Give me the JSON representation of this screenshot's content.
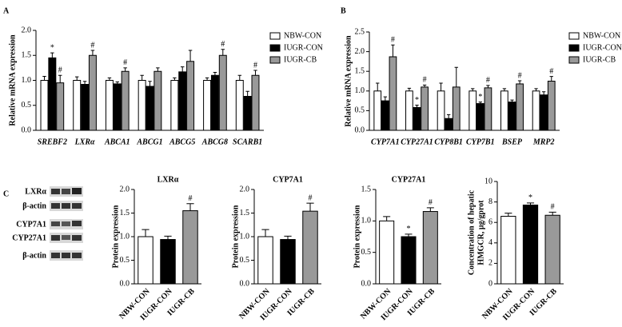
{
  "chart_data": [
    {
      "type": "bar",
      "panel": "A",
      "ylabel": "Relative mRNA expression",
      "categories": [
        "SREBF2",
        "LXRα",
        "ABCA1",
        "ABCG1",
        "ABCG5",
        "ABCG8",
        "SCARB1"
      ],
      "series": [
        {
          "name": "NBW-CON",
          "color": "#ffffff",
          "values": [
            1.0,
            1.0,
            1.0,
            1.0,
            1.0,
            1.0,
            1.0
          ],
          "errors": [
            0.08,
            0.07,
            0.05,
            0.1,
            0.05,
            0.05,
            0.1
          ],
          "annotations": [
            null,
            null,
            null,
            null,
            null,
            null,
            null
          ]
        },
        {
          "name": "IUGR-CON",
          "color": "#000000",
          "values": [
            1.45,
            0.92,
            0.93,
            0.88,
            1.17,
            1.1,
            0.68
          ],
          "errors": [
            0.1,
            0.06,
            0.04,
            0.1,
            0.1,
            0.06,
            0.1
          ],
          "annotations": [
            "*",
            null,
            null,
            null,
            null,
            null,
            null
          ]
        },
        {
          "name": "IUGR-CB",
          "color": "#999999",
          "values": [
            0.95,
            1.5,
            1.18,
            1.18,
            1.38,
            1.5,
            1.1
          ],
          "errors": [
            0.15,
            0.1,
            0.07,
            0.07,
            0.22,
            0.12,
            0.1
          ],
          "annotations": [
            "#",
            "#",
            "#",
            null,
            null,
            "#",
            "#"
          ]
        }
      ],
      "ylim": [
        0,
        2.0
      ],
      "yticks": [
        {
          "value": 0,
          "label": "0.0"
        },
        0.5,
        {
          "value": 1.0,
          "label": "1.0"
        },
        1.5,
        {
          "value": 2.0,
          "label": "2.0"
        }
      ]
    },
    {
      "type": "bar",
      "panel": "B",
      "ylabel": "Relative mRNA expression",
      "categories": [
        "CYP7A1",
        "CYP27A1",
        "CYP8B1",
        "CYP7B1",
        "BSEP",
        "MRP2"
      ],
      "series": [
        {
          "name": "NBW-CON",
          "color": "#ffffff",
          "values": [
            1.0,
            1.0,
            1.0,
            1.0,
            1.0,
            1.0
          ],
          "errors": [
            0.2,
            0.07,
            0.2,
            0.06,
            0.06,
            0.06
          ],
          "annotations": [
            null,
            null,
            null,
            null,
            null,
            null
          ]
        },
        {
          "name": "IUGR-CON",
          "color": "#000000",
          "values": [
            0.75,
            0.58,
            0.3,
            0.68,
            0.72,
            0.9
          ],
          "errors": [
            0.1,
            0.06,
            0.1,
            0.04,
            0.05,
            0.08
          ],
          "annotations": [
            null,
            "*",
            null,
            "*",
            null,
            null
          ]
        },
        {
          "name": "IUGR-CB",
          "color": "#999999",
          "values": [
            1.87,
            1.1,
            1.1,
            1.08,
            1.18,
            1.25
          ],
          "errors": [
            0.3,
            0.05,
            0.5,
            0.06,
            0.08,
            0.12
          ],
          "annotations": [
            "#",
            "#",
            null,
            "#",
            "#",
            "#"
          ]
        }
      ],
      "ylim": [
        0,
        2.5
      ],
      "yticks": [
        {
          "value": 0,
          "label": "0.0"
        },
        0.5,
        {
          "value": 1.0,
          "label": "1.0"
        },
        1.5,
        {
          "value": 2.0,
          "label": "2.0"
        },
        2.5
      ]
    },
    {
      "type": "bar",
      "panel": "C",
      "title": "LXRα",
      "ylabel": "Protein expression",
      "categories": [
        "NBW-CON",
        "IUGR-CON",
        "IUGR-CB"
      ],
      "colors": [
        "#ffffff",
        "#000000",
        "#999999"
      ],
      "values": [
        1.0,
        0.94,
        1.55
      ],
      "errors": [
        0.15,
        0.07,
        0.15
      ],
      "annotations": [
        null,
        null,
        "#"
      ],
      "ylim": [
        0,
        2.0
      ],
      "yticks": [
        {
          "value": 0,
          "label": "0.0"
        },
        0.5,
        {
          "value": 1.0,
          "label": "1.0"
        },
        1.5,
        {
          "value": 2.0,
          "label": "2.0"
        }
      ]
    },
    {
      "type": "bar",
      "title": "CYP7A1",
      "ylabel": "Protein expression",
      "categories": [
        "NBW-CON",
        "IUGR-CON",
        "IUGR-CB"
      ],
      "colors": [
        "#ffffff",
        "#000000",
        "#999999"
      ],
      "values": [
        1.0,
        0.94,
        1.54
      ],
      "errors": [
        0.15,
        0.07,
        0.17
      ],
      "annotations": [
        null,
        null,
        "#"
      ],
      "ylim": [
        0,
        2.0
      ],
      "yticks": [
        {
          "value": 0,
          "label": "0.0"
        },
        0.5,
        {
          "value": 1.0,
          "label": "1.0"
        },
        1.5,
        {
          "value": 2.0,
          "label": "2.0"
        }
      ]
    },
    {
      "type": "bar",
      "title": "CYP27A1",
      "ylabel": "Protein expression",
      "categories": [
        "NBW-CON",
        "IUGR-CON",
        "IUGR-CB"
      ],
      "colors": [
        "#ffffff",
        "#000000",
        "#999999"
      ],
      "values": [
        1.0,
        0.75,
        1.15
      ],
      "errors": [
        0.07,
        0.04,
        0.06
      ],
      "annotations": [
        null,
        "*",
        "#"
      ],
      "ylim": [
        0,
        1.5
      ],
      "yticks": [
        {
          "value": 0,
          "label": "0.0"
        },
        0.5,
        {
          "value": 1.0,
          "label": "1.0"
        },
        1.5
      ]
    },
    {
      "type": "bar",
      "ylabel": [
        "Concentration of hepatic",
        "HMGCR, µg/gprot"
      ],
      "categories": [
        "NBW-CON",
        "IUGR-CON",
        "IUGR-CB"
      ],
      "colors": [
        "#ffffff",
        "#000000",
        "#999999"
      ],
      "values": [
        6.6,
        7.7,
        6.7
      ],
      "errors": [
        0.3,
        0.2,
        0.3
      ],
      "annotations": [
        null,
        "*",
        "#"
      ],
      "ylim": [
        0,
        10
      ],
      "yticks": [
        0,
        2,
        4,
        6,
        8,
        10
      ]
    }
  ],
  "blot": {
    "labels": [
      "LXRα",
      "β-actin",
      "CYP7A1",
      "CYP27A1",
      "β-actin"
    ]
  }
}
